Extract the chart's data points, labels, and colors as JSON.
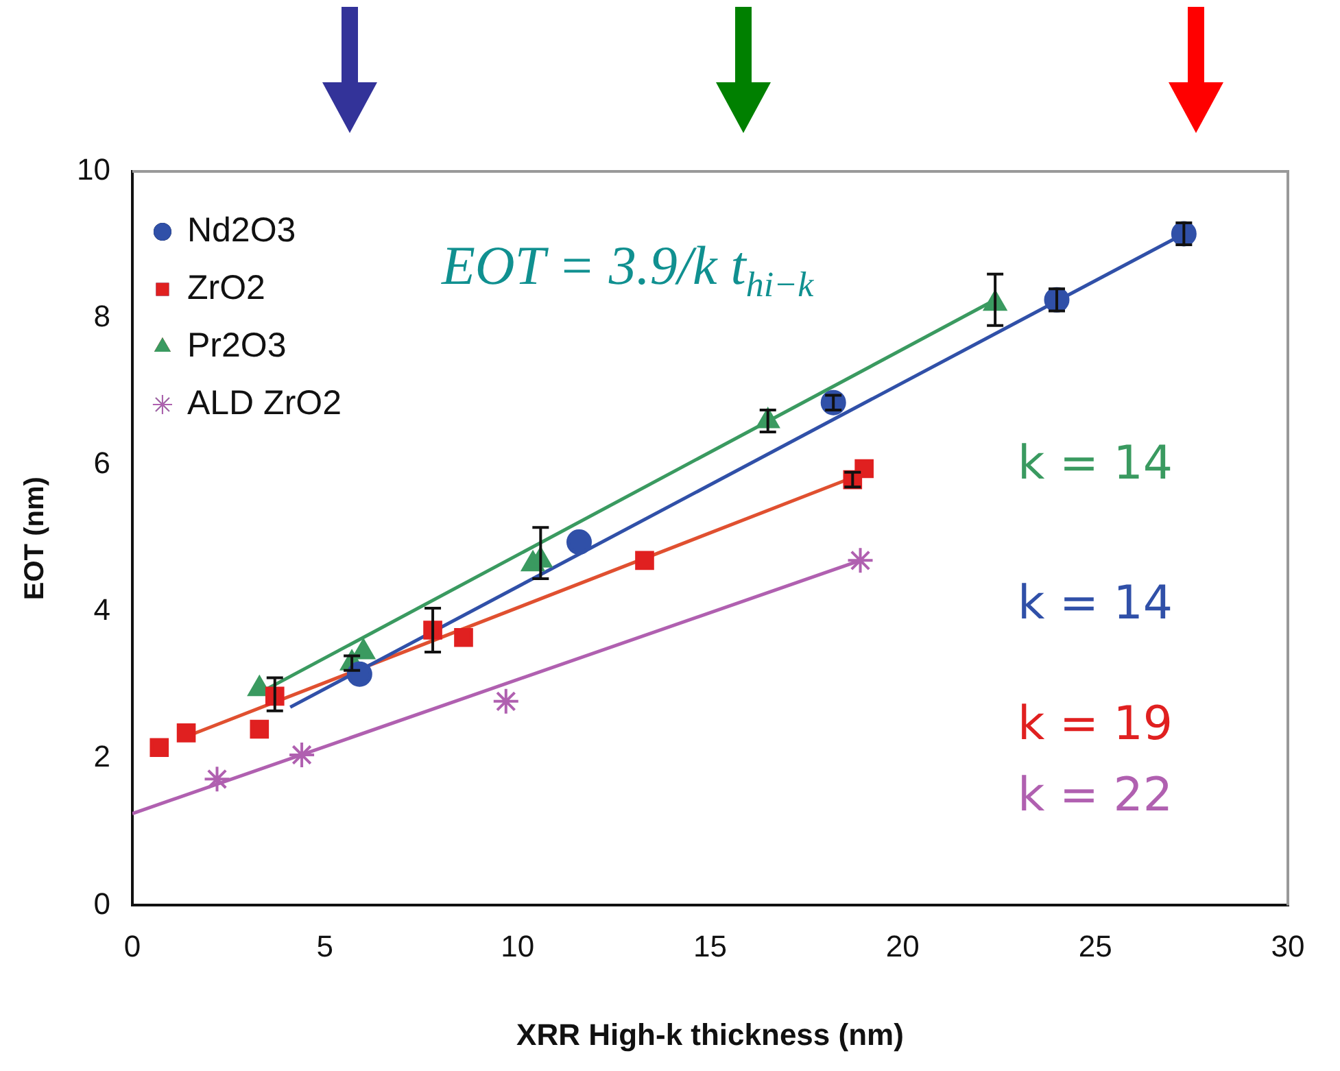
{
  "chart_data": {
    "type": "scatter",
    "xlabel": "XRR High-k thickness (nm)",
    "ylabel": "EOT (nm)",
    "xlim": [
      0,
      30
    ],
    "xticks": [
      0,
      5,
      10,
      15,
      20,
      25,
      30
    ],
    "ylim": [
      0,
      10
    ],
    "yticks": [
      0,
      2,
      4,
      6,
      8,
      10
    ],
    "grid": false,
    "legend": "top left",
    "series": [
      {
        "name": "Nd2O3",
        "color": "#3050a8",
        "marker": "circle",
        "x": [
          5.9,
          11.6,
          18.2,
          24.0,
          27.3
        ],
        "values": [
          3.15,
          4.95,
          6.85,
          8.25,
          9.15
        ],
        "errors": [
          null,
          null,
          0.1,
          0.15,
          0.15
        ]
      },
      {
        "name": "ZrO2",
        "color": "#e02020",
        "marker": "square",
        "x": [
          0.7,
          1.4,
          3.3,
          3.7,
          7.8,
          8.6,
          13.3,
          18.7,
          19.0
        ],
        "values": [
          2.15,
          2.35,
          2.4,
          2.85,
          3.75,
          3.65,
          4.7,
          5.8,
          5.95
        ],
        "errors": [
          null,
          null,
          null,
          [
            2.65,
            3.1
          ],
          [
            3.45,
            4.05
          ],
          null,
          null,
          0.1,
          null
        ]
      },
      {
        "name": "Pr2O3",
        "color": "#3a9a60",
        "marker": "triangle",
        "x": [
          3.3,
          5.7,
          6.0,
          10.4,
          10.6,
          16.5,
          22.4
        ],
        "values": [
          2.95,
          3.3,
          3.45,
          4.65,
          4.7,
          6.6,
          8.2
        ],
        "errors": [
          null,
          0.1,
          null,
          null,
          [
            4.45,
            5.15
          ],
          0.15,
          [
            7.9,
            8.6
          ]
        ]
      },
      {
        "name": "ALD ZrO2",
        "color": "#b060b0",
        "marker": "cross",
        "x": [
          2.2,
          4.4,
          9.7,
          18.9
        ],
        "values": [
          1.72,
          2.05,
          2.78,
          4.7
        ]
      },
      {
        "type": "line",
        "color": "#3050a8",
        "x": [
          4.1,
          27.3
        ],
        "values": [
          2.7,
          9.15
        ]
      },
      {
        "type": "line",
        "color": "#e05030",
        "x": [
          1.4,
          18.8
        ],
        "values": [
          2.3,
          5.85
        ]
      },
      {
        "type": "line",
        "color": "#3a9a60",
        "x": [
          3.5,
          22.4
        ],
        "values": [
          2.95,
          8.25
        ]
      },
      {
        "type": "line",
        "color": "#b060b0",
        "x": [
          0,
          18.9
        ],
        "values": [
          1.25,
          4.7
        ]
      }
    ],
    "annotations": [
      "EOT = 3.9/k t$_{hi−k}$",
      "k = 14",
      "k = 14",
      "k = 19",
      "k = 22"
    ]
  }
}
